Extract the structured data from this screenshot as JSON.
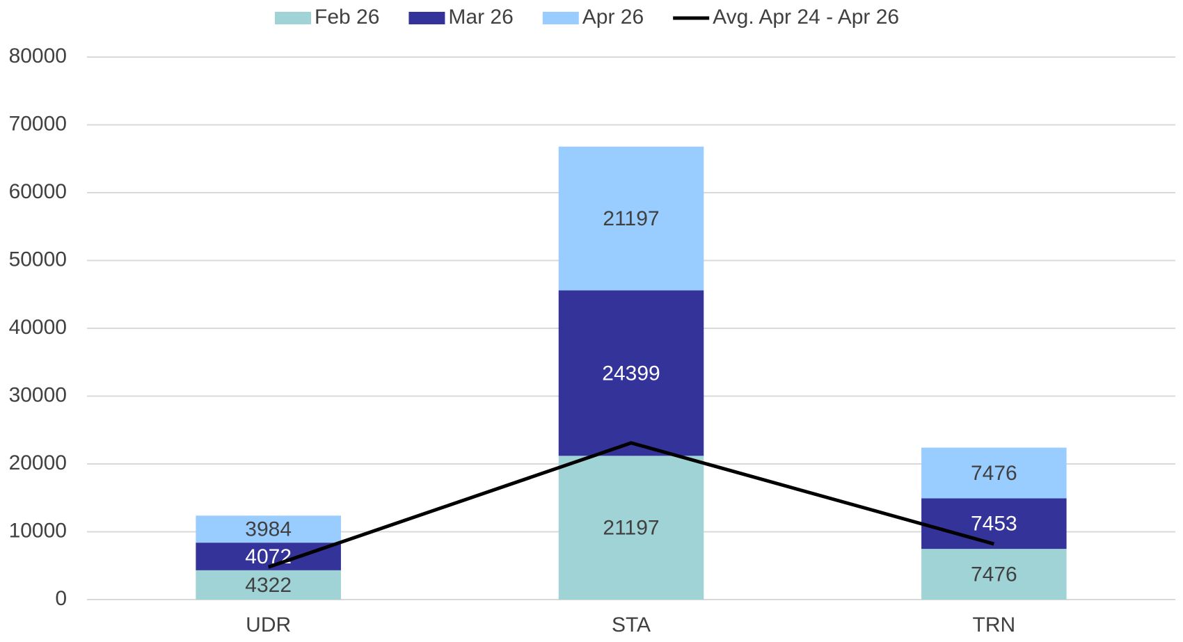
{
  "chart_data": {
    "type": "stacked_bar_line",
    "categories": [
      "UDR",
      "STA",
      "TRN"
    ],
    "series": [
      {
        "name": "Feb 26",
        "color": "#9fd3d6",
        "label_color": "#404040",
        "values": [
          4322,
          21197,
          7476
        ]
      },
      {
        "name": "Mar 26",
        "color": "#343399",
        "label_color": "#ffffff",
        "values": [
          4072,
          24399,
          7453
        ]
      },
      {
        "name": "Apr 26",
        "color": "#99ccff",
        "label_color": "#404040",
        "values": [
          3984,
          21197,
          7476
        ]
      },
      {
        "name": "Avg. Apr 24 - Apr 26",
        "type": "line",
        "color": "#000000",
        "values": [
          4800,
          23100,
          8200
        ]
      }
    ],
    "ylim": [
      0,
      80000
    ],
    "yticks": [
      0,
      10000,
      20000,
      30000,
      40000,
      50000,
      60000,
      70000,
      80000
    ],
    "grid": true,
    "legend": "top"
  }
}
